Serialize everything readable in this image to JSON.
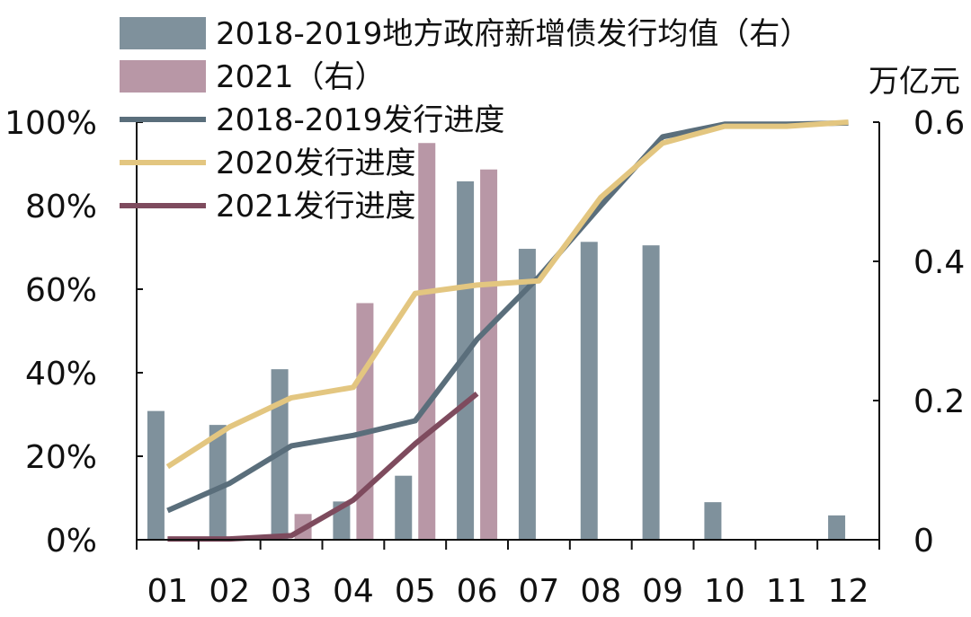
{
  "chart_data": {
    "type": "bar+line",
    "categories": [
      "01",
      "02",
      "03",
      "04",
      "05",
      "06",
      "07",
      "08",
      "09",
      "10",
      "11",
      "12"
    ],
    "left_axis": {
      "ticks": [
        "0%",
        "20%",
        "40%",
        "60%",
        "80%",
        "100%"
      ],
      "ylim": [
        0,
        100
      ]
    },
    "right_axis": {
      "unit": "万亿元",
      "ticks": [
        "0",
        "0.2",
        "0.4",
        "0.6"
      ],
      "ylim": [
        0,
        0.6
      ]
    },
    "bar_series": [
      {
        "name": "2018-2019地方政府新增债发行均值（右）",
        "color": "#7F919C",
        "values": [
          0.185,
          0.165,
          0.245,
          0.055,
          0.092,
          0.515,
          0.418,
          0.428,
          0.423,
          0.054,
          0.001,
          0.035
        ]
      },
      {
        "name": "2021（右）",
        "color": "#B897A6",
        "values": [
          null,
          null,
          0.037,
          0.34,
          0.57,
          0.532,
          null,
          null,
          null,
          null,
          null,
          null
        ]
      }
    ],
    "line_series": [
      {
        "name": "2018-2019发行进度",
        "color": "#5A6E7B",
        "values": [
          7,
          13.5,
          22.5,
          25,
          28.5,
          48,
          63,
          80,
          96.5,
          99.5,
          99.5,
          99.8
        ]
      },
      {
        "name": "2020发行进度",
        "color": "#E3C680",
        "values": [
          17.5,
          27,
          34,
          36.5,
          59,
          61,
          62,
          82,
          95,
          99,
          99,
          100
        ]
      },
      {
        "name": "2021发行进度",
        "color": "#7E4B5E",
        "values": [
          0.2,
          0.2,
          1,
          9.5,
          23,
          35,
          null,
          null,
          null,
          null,
          null,
          null
        ]
      }
    ],
    "legend": "top-left"
  }
}
